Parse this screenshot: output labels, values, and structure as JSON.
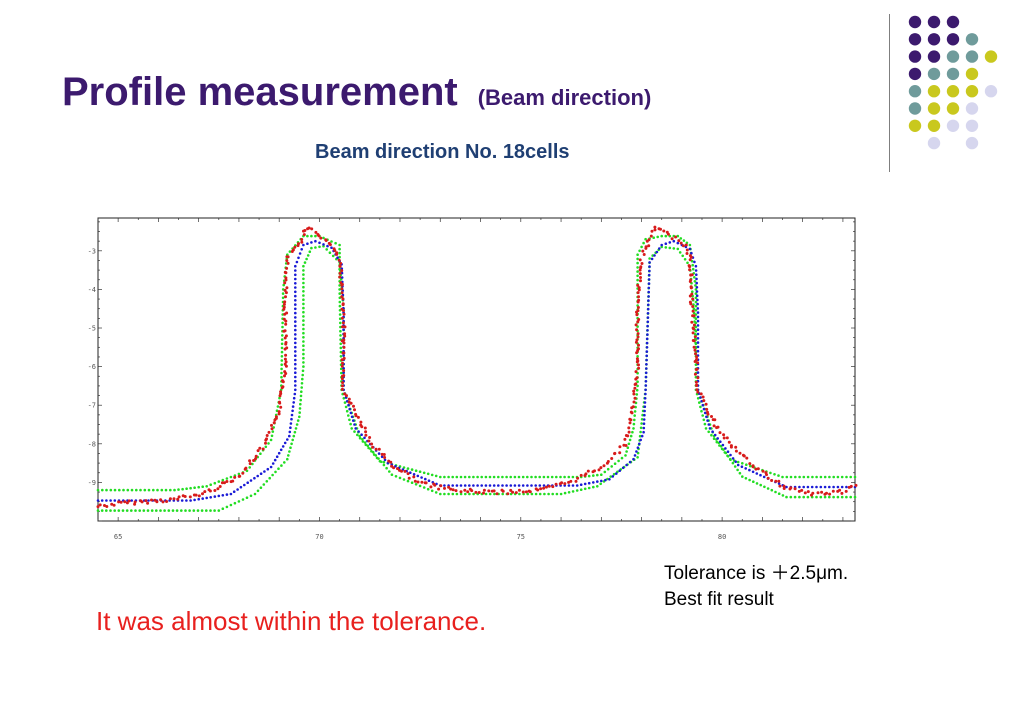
{
  "title": {
    "main": "Profile measurement",
    "sub": "(Beam direction)"
  },
  "subtitle": "Beam direction No. 18cells",
  "note": {
    "line1": "Tolerance is ＋2.5μm.",
    "line2": "Best fit result"
  },
  "conclusion": "It was almost within the tolerance.",
  "colors": {
    "title": "#3c1a6e",
    "subtitle": "#1f3f73",
    "conclusion": "#e8201e",
    "tolerance_band": "#22dd22",
    "best_fit": "#1a1ad6",
    "measured": "#d81b1b",
    "decor_purple": "#3c1a6e",
    "decor_teal": "#6f9b9b",
    "decor_olive": "#c9c81e",
    "decor_lavender": "#d6d6ee"
  },
  "decor_dots": [
    [
      "purple",
      "purple",
      "purple",
      "",
      ""
    ],
    [
      "purple",
      "purple",
      "purple",
      "teal",
      ""
    ],
    [
      "purple",
      "purple",
      "teal",
      "teal",
      "olive"
    ],
    [
      "purple",
      "teal",
      "teal",
      "olive",
      ""
    ],
    [
      "teal",
      "olive",
      "olive",
      "olive",
      "lavender"
    ],
    [
      "teal",
      "olive",
      "olive",
      "lavender",
      ""
    ],
    [
      "olive",
      "olive",
      "lavender",
      "lavender",
      ""
    ],
    [
      "",
      "lavender",
      "",
      "lavender",
      ""
    ]
  ],
  "chart_data": {
    "type": "scatter",
    "xlim": [
      64.5,
      83.3
    ],
    "ylim": [
      -10.0,
      -2.15
    ],
    "x_ticks": [
      65,
      70,
      75,
      80
    ],
    "y_ticks": [
      -3,
      -4,
      -5,
      -6,
      -7,
      -8,
      -9
    ],
    "x_tick_labels": [
      "65",
      "70",
      "75",
      "80"
    ],
    "y_tick_labels": [
      "-3",
      "-4",
      "-5",
      "-6",
      "-7",
      "-8",
      "-9"
    ],
    "grid": false,
    "series": [
      {
        "role": "tolerance-upper",
        "color": "#22dd22",
        "points": [
          [
            64.5,
            -9.2
          ],
          [
            66.4,
            -9.2
          ],
          [
            67.2,
            -9.1
          ],
          [
            68.2,
            -8.7
          ],
          [
            68.8,
            -7.9
          ],
          [
            69.05,
            -6.6
          ],
          [
            69.1,
            -4.0
          ],
          [
            69.2,
            -3.1
          ],
          [
            69.6,
            -2.62
          ],
          [
            70.0,
            -2.62
          ],
          [
            70.5,
            -2.85
          ],
          [
            70.5,
            -4.0
          ],
          [
            70.55,
            -6.6
          ],
          [
            70.8,
            -7.6
          ],
          [
            71.5,
            -8.45
          ],
          [
            73.0,
            -8.86
          ],
          [
            76.5,
            -8.86
          ],
          [
            77.0,
            -8.8
          ],
          [
            77.6,
            -8.3
          ],
          [
            77.8,
            -7.6
          ],
          [
            77.9,
            -6.5
          ],
          [
            77.9,
            -3.1
          ],
          [
            78.1,
            -2.7
          ],
          [
            78.5,
            -2.62
          ],
          [
            78.9,
            -2.62
          ],
          [
            79.2,
            -2.85
          ],
          [
            79.35,
            -4.0
          ],
          [
            79.35,
            -6.6
          ],
          [
            79.6,
            -7.6
          ],
          [
            80.2,
            -8.4
          ],
          [
            81.5,
            -8.86
          ],
          [
            83.3,
            -8.86
          ]
        ]
      },
      {
        "role": "tolerance-lower",
        "color": "#22dd22",
        "points": [
          [
            64.5,
            -9.73
          ],
          [
            67.5,
            -9.73
          ],
          [
            68.4,
            -9.3
          ],
          [
            69.2,
            -8.4
          ],
          [
            69.5,
            -7.3
          ],
          [
            69.6,
            -6.0
          ],
          [
            69.6,
            -3.4
          ],
          [
            69.8,
            -2.93
          ],
          [
            70.1,
            -2.88
          ],
          [
            70.5,
            -3.3
          ],
          [
            70.6,
            -4.5
          ],
          [
            70.6,
            -6.6
          ],
          [
            71.0,
            -7.8
          ],
          [
            71.8,
            -8.8
          ],
          [
            73.0,
            -9.3
          ],
          [
            76.0,
            -9.3
          ],
          [
            76.9,
            -9.1
          ],
          [
            77.9,
            -8.35
          ],
          [
            78.1,
            -6.6
          ],
          [
            78.2,
            -3.2
          ],
          [
            78.5,
            -2.9
          ],
          [
            78.9,
            -2.95
          ],
          [
            79.2,
            -3.4
          ],
          [
            79.3,
            -4.5
          ],
          [
            79.4,
            -6.6
          ],
          [
            79.8,
            -7.8
          ],
          [
            80.5,
            -8.85
          ],
          [
            81.6,
            -9.38
          ],
          [
            83.3,
            -9.38
          ]
        ]
      },
      {
        "role": "best-fit",
        "color": "#1a1ad6",
        "points": [
          [
            64.5,
            -9.47
          ],
          [
            66.8,
            -9.47
          ],
          [
            67.8,
            -9.3
          ],
          [
            68.8,
            -8.6
          ],
          [
            69.25,
            -7.8
          ],
          [
            69.4,
            -6.6
          ],
          [
            69.4,
            -3.4
          ],
          [
            69.6,
            -2.85
          ],
          [
            69.9,
            -2.75
          ],
          [
            70.3,
            -2.92
          ],
          [
            70.55,
            -3.35
          ],
          [
            70.6,
            -4.6
          ],
          [
            70.6,
            -6.6
          ],
          [
            70.9,
            -7.6
          ],
          [
            71.7,
            -8.5
          ],
          [
            73.0,
            -9.08
          ],
          [
            76.4,
            -9.08
          ],
          [
            77.2,
            -8.92
          ],
          [
            77.8,
            -8.4
          ],
          [
            78.05,
            -7.7
          ],
          [
            78.1,
            -6.6
          ],
          [
            78.2,
            -3.3
          ],
          [
            78.5,
            -2.85
          ],
          [
            78.8,
            -2.75
          ],
          [
            79.2,
            -2.95
          ],
          [
            79.35,
            -3.4
          ],
          [
            79.4,
            -4.6
          ],
          [
            79.4,
            -6.6
          ],
          [
            79.7,
            -7.6
          ],
          [
            80.4,
            -8.55
          ],
          [
            81.6,
            -9.12
          ],
          [
            83.3,
            -9.12
          ]
        ]
      },
      {
        "role": "measured",
        "color": "#d81b1b",
        "points": [
          [
            64.5,
            -9.62
          ],
          [
            65.0,
            -9.55
          ],
          [
            65.6,
            -9.5
          ],
          [
            66.3,
            -9.45
          ],
          [
            67.1,
            -9.3
          ],
          [
            68.0,
            -8.85
          ],
          [
            68.6,
            -8.1
          ],
          [
            69.0,
            -7.2
          ],
          [
            69.15,
            -6.0
          ],
          [
            69.15,
            -4.2
          ],
          [
            69.2,
            -3.2
          ],
          [
            69.5,
            -2.8
          ],
          [
            69.7,
            -2.38
          ],
          [
            70.0,
            -2.6
          ],
          [
            70.3,
            -2.85
          ],
          [
            70.5,
            -3.2
          ],
          [
            70.6,
            -4.6
          ],
          [
            70.6,
            -6.6
          ],
          [
            70.9,
            -7.2
          ],
          [
            71.3,
            -8.0
          ],
          [
            71.8,
            -8.55
          ],
          [
            72.6,
            -9.05
          ],
          [
            73.5,
            -9.22
          ],
          [
            74.5,
            -9.25
          ],
          [
            75.5,
            -9.2
          ],
          [
            76.2,
            -9.0
          ],
          [
            77.0,
            -8.6
          ],
          [
            77.6,
            -8.0
          ],
          [
            77.8,
            -7.0
          ],
          [
            77.9,
            -6.0
          ],
          [
            77.9,
            -4.2
          ],
          [
            78.0,
            -3.2
          ],
          [
            78.2,
            -2.7
          ],
          [
            78.35,
            -2.38
          ],
          [
            78.7,
            -2.6
          ],
          [
            79.0,
            -2.75
          ],
          [
            79.2,
            -3.1
          ],
          [
            79.25,
            -4.4
          ],
          [
            79.4,
            -6.6
          ],
          [
            79.7,
            -7.3
          ],
          [
            80.2,
            -8.0
          ],
          [
            80.8,
            -8.6
          ],
          [
            81.5,
            -9.1
          ],
          [
            82.2,
            -9.3
          ],
          [
            83.0,
            -9.25
          ],
          [
            83.3,
            -9.1
          ]
        ]
      }
    ]
  }
}
